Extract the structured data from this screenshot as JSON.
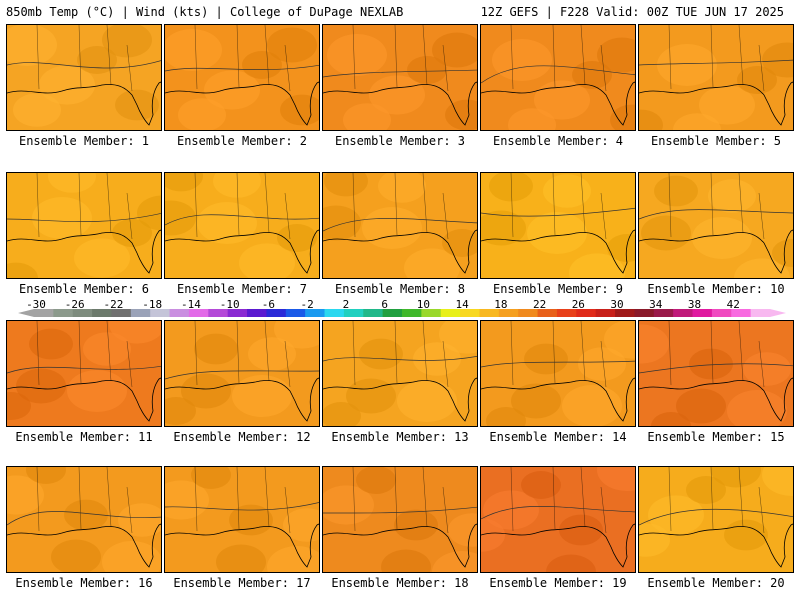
{
  "header": {
    "left": "850mb Temp (°C) | Wind (kts) | College of DuPage NEXLAB",
    "right": "12Z GEFS | F228 Valid: 00Z TUE JUN 17 2025"
  },
  "members": [
    {
      "label": "Ensemble Member: 1",
      "tone": "#f5a423"
    },
    {
      "label": "Ensemble Member: 2",
      "tone": "#f3921c"
    },
    {
      "label": "Ensemble Member: 3",
      "tone": "#f08a1d"
    },
    {
      "label": "Ensemble Member: 4",
      "tone": "#f08a1d"
    },
    {
      "label": "Ensemble Member: 5",
      "tone": "#f39a1e"
    },
    {
      "label": "Ensemble Member: 6",
      "tone": "#f7ad1c"
    },
    {
      "label": "Ensemble Member: 7",
      "tone": "#f7ad1c"
    },
    {
      "label": "Ensemble Member: 8",
      "tone": "#f5a01e"
    },
    {
      "label": "Ensemble Member: 9",
      "tone": "#f8b11a"
    },
    {
      "label": "Ensemble Member: 10",
      "tone": "#f6a820"
    },
    {
      "label": "Ensemble Member: 11",
      "tone": "#ee7a1e"
    },
    {
      "label": "Ensemble Member: 12",
      "tone": "#f39a1e"
    },
    {
      "label": "Ensemble Member: 13",
      "tone": "#f5a420"
    },
    {
      "label": "Ensemble Member: 14",
      "tone": "#f39a1e"
    },
    {
      "label": "Ensemble Member: 15",
      "tone": "#ec7620"
    },
    {
      "label": "Ensemble Member: 16",
      "tone": "#f39a1e"
    },
    {
      "label": "Ensemble Member: 17",
      "tone": "#f39a1e"
    },
    {
      "label": "Ensemble Member: 18",
      "tone": "#ee8a1e"
    },
    {
      "label": "Ensemble Member: 19",
      "tone": "#ea6f22"
    },
    {
      "label": "Ensemble Member: 20",
      "tone": "#f6ac1c"
    }
  ],
  "colorbar": {
    "ticks": [
      "-30",
      "-26",
      "-22",
      "-18",
      "-14",
      "-10",
      "-6",
      "-2",
      "2",
      "6",
      "10",
      "14",
      "18",
      "22",
      "26",
      "30",
      "34",
      "38",
      "42"
    ],
    "colors": [
      "#a3a3a3",
      "#8c9a8c",
      "#7e8c7e",
      "#6c7a6c",
      "#707070",
      "#9aa2b8",
      "#c4c4d8",
      "#c98ee0",
      "#e26ae8",
      "#b44ad8",
      "#8a2ad2",
      "#5a1ad0",
      "#2a2ad8",
      "#1a5ae8",
      "#1a9af0",
      "#2ad8f0",
      "#20d0c0",
      "#20b88a",
      "#20a040",
      "#3fb82a",
      "#9ad82a",
      "#e8f01a",
      "#f8d820",
      "#f8b820",
      "#f5a020",
      "#f08a1e",
      "#e8601a",
      "#e8401a",
      "#e02a1a",
      "#c8201a",
      "#a01a1a",
      "#8a1a2a",
      "#9a1a4a",
      "#c01a7a",
      "#e01aa0",
      "#f04ac0",
      "#f86ae0",
      "#f8b8f0"
    ]
  }
}
